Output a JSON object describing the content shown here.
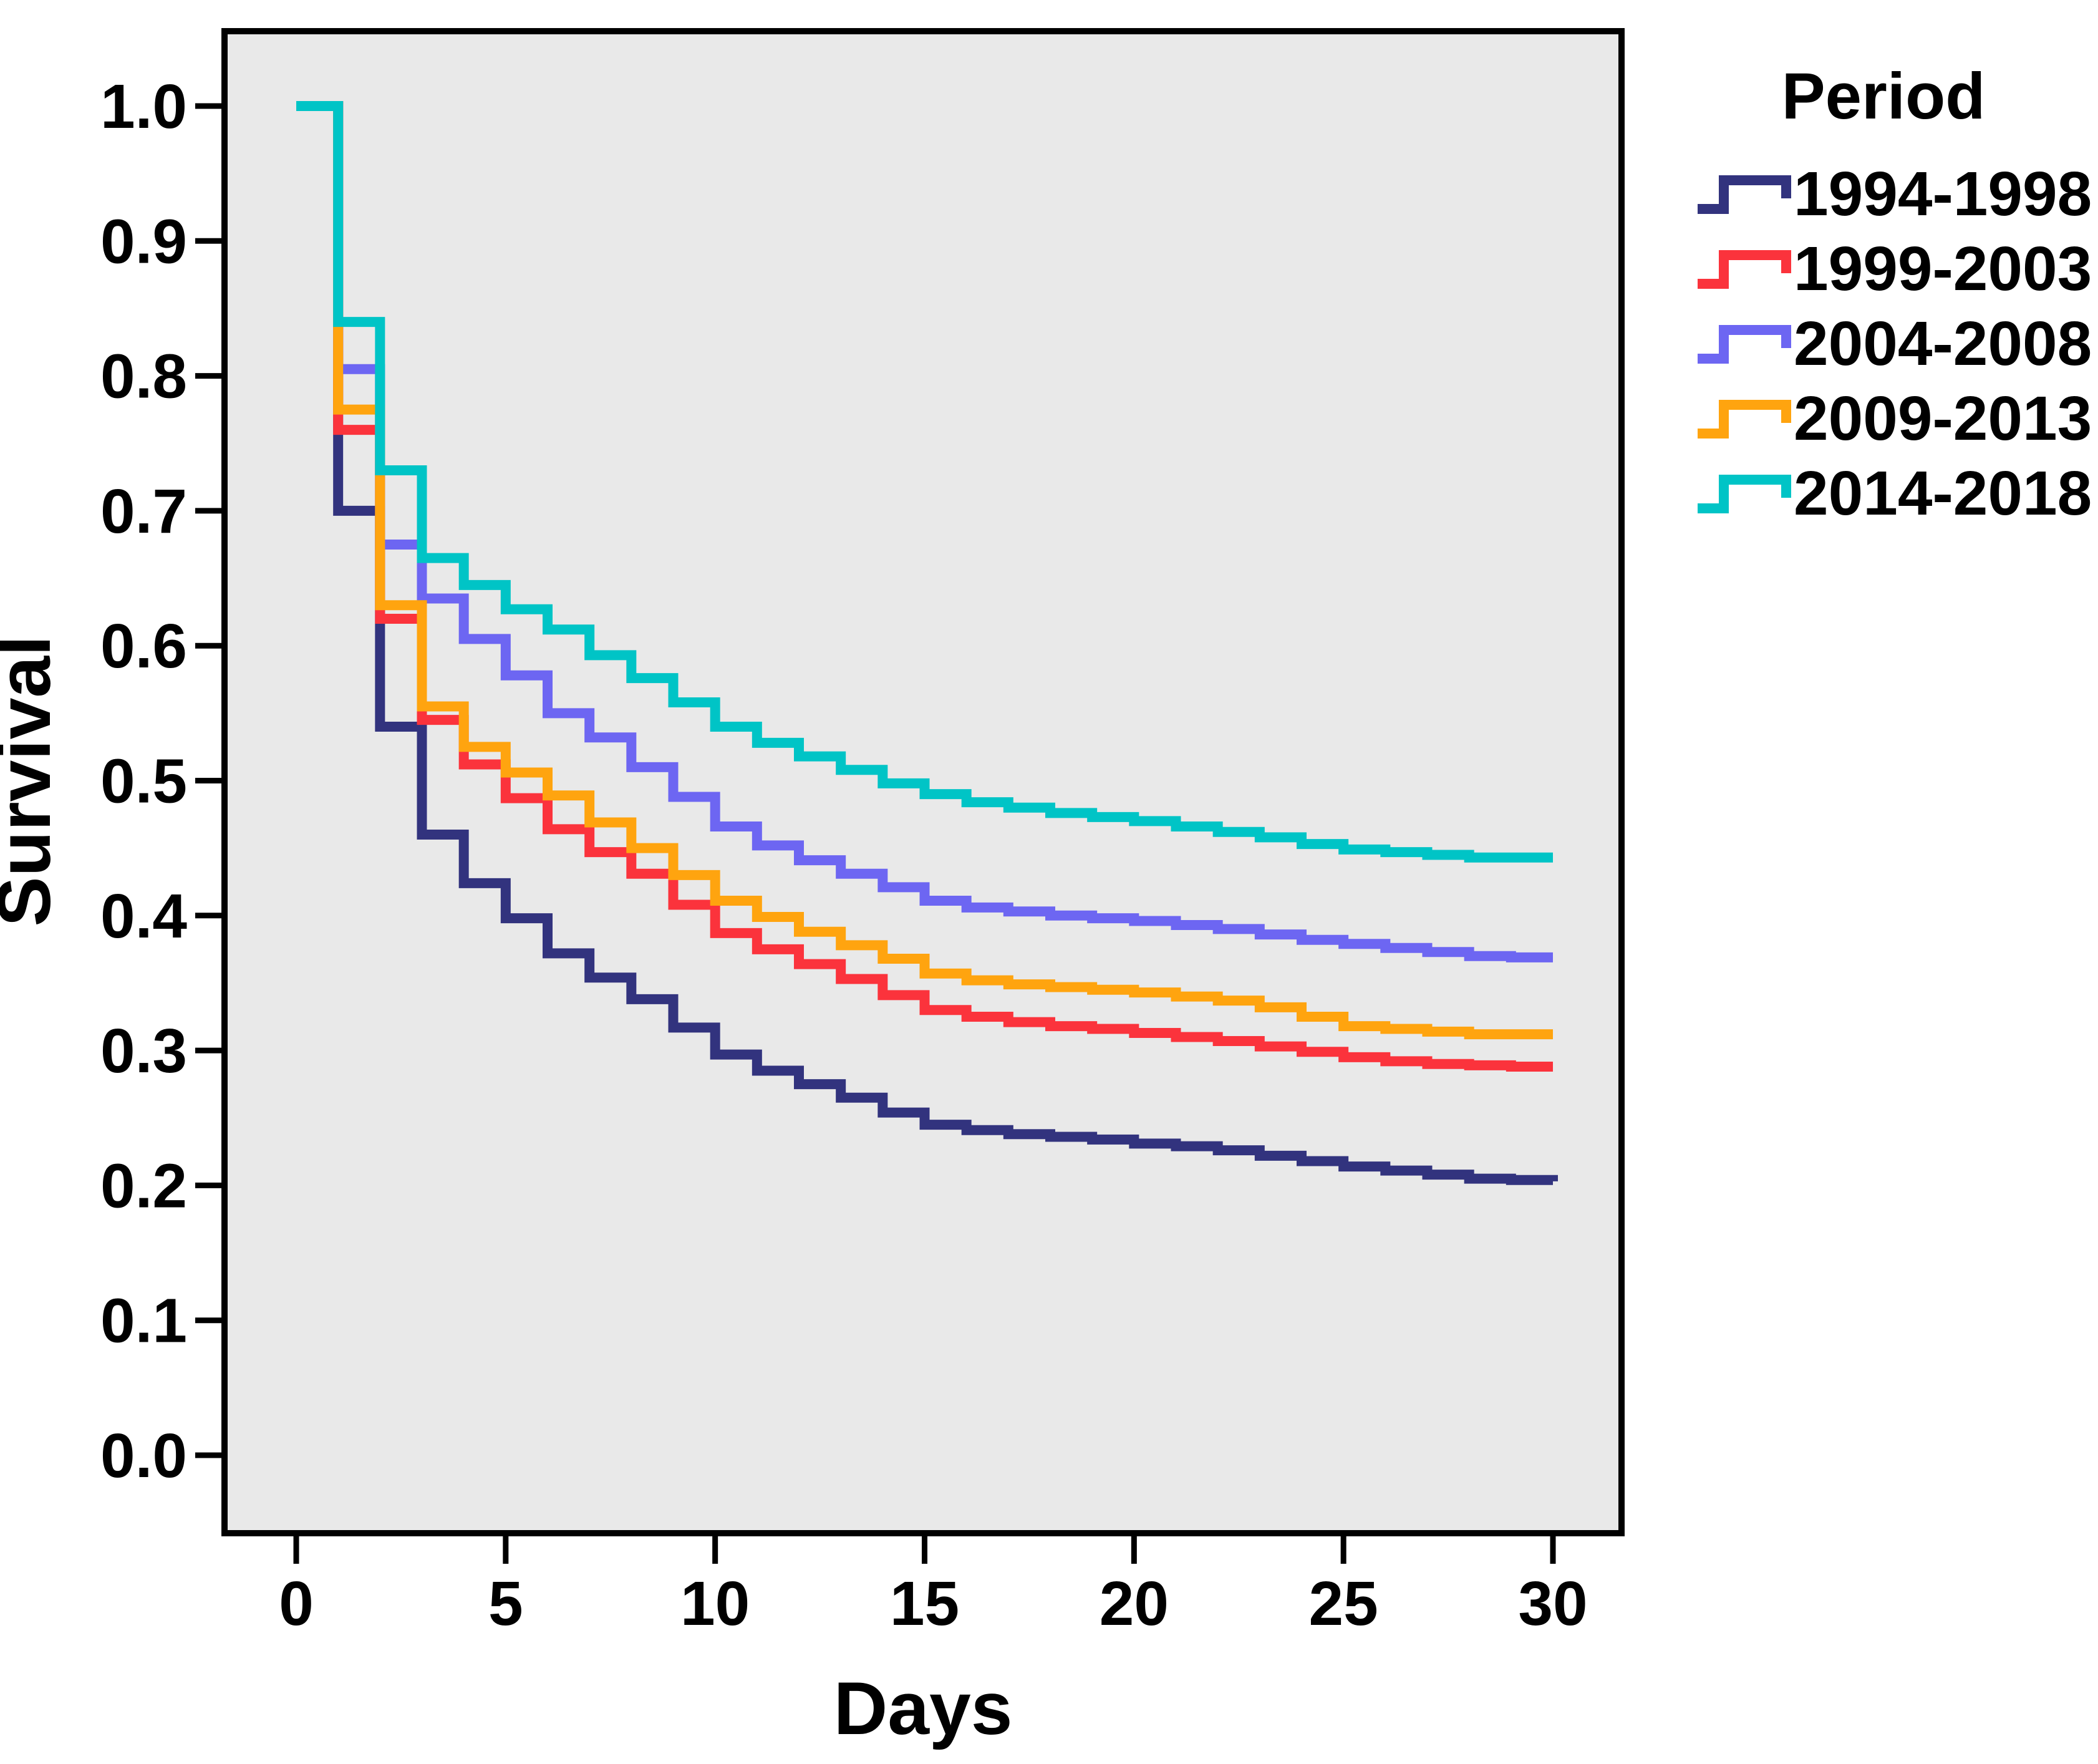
{
  "chart_data": {
    "type": "line",
    "subtype": "kaplan-meier-step-survival",
    "title": "",
    "xlabel": "Days",
    "ylabel": "Survival",
    "legend_title": "Period",
    "legend_position": "outside-top-right",
    "grid": false,
    "plot_background_color": "#E9E9E9",
    "axis_color": "#000000",
    "xlim": [
      0,
      30
    ],
    "ylim": [
      0.0,
      1.0
    ],
    "x_ticks": [
      0,
      5,
      10,
      15,
      20,
      25,
      30
    ],
    "y_ticks": [
      {
        "value": 1.0,
        "label": "1.0"
      },
      {
        "value": 0.9,
        "label": "0.9"
      },
      {
        "value": 0.8,
        "label": "0.8"
      },
      {
        "value": 0.7,
        "label": "0.7"
      },
      {
        "value": 0.6,
        "label": "0.6"
      },
      {
        "value": 0.5,
        "label": "0.5"
      },
      {
        "value": 0.4,
        "label": "0.4"
      },
      {
        "value": 0.3,
        "label": "0.3"
      },
      {
        "value": 0.2,
        "label": "0.2"
      },
      {
        "value": 0.1,
        "label": "0.1"
      },
      {
        "value": 0.0,
        "label": "0.0"
      }
    ],
    "start_point": {
      "day": 0,
      "survival": 1.0
    },
    "days": [
      1,
      2,
      3,
      4,
      5,
      6,
      7,
      8,
      9,
      10,
      11,
      12,
      13,
      14,
      15,
      16,
      17,
      18,
      19,
      20,
      21,
      22,
      23,
      24,
      25,
      26,
      27,
      28,
      29,
      30
    ],
    "series": [
      {
        "name": "1994-1998",
        "color": "#32337E",
        "values": [
          0.7,
          0.54,
          0.46,
          0.424,
          0.398,
          0.372,
          0.354,
          0.338,
          0.317,
          0.297,
          0.285,
          0.275,
          0.265,
          0.254,
          0.245,
          0.241,
          0.238,
          0.236,
          0.234,
          0.231,
          0.229,
          0.226,
          0.222,
          0.218,
          0.214,
          0.211,
          0.208,
          0.205,
          0.204,
          0.203
        ]
      },
      {
        "name": "1999-2003",
        "color": "#FB333C",
        "values": [
          0.76,
          0.62,
          0.545,
          0.512,
          0.487,
          0.464,
          0.447,
          0.431,
          0.408,
          0.387,
          0.375,
          0.364,
          0.353,
          0.341,
          0.33,
          0.325,
          0.321,
          0.318,
          0.316,
          0.313,
          0.31,
          0.307,
          0.303,
          0.299,
          0.295,
          0.292,
          0.29,
          0.289,
          0.288,
          0.288
        ]
      },
      {
        "name": "2004-2008",
        "color": "#6D66F2",
        "values": [
          0.805,
          0.675,
          0.635,
          0.605,
          0.578,
          0.55,
          0.532,
          0.51,
          0.488,
          0.466,
          0.452,
          0.441,
          0.431,
          0.421,
          0.411,
          0.406,
          0.403,
          0.4,
          0.398,
          0.396,
          0.393,
          0.39,
          0.386,
          0.382,
          0.379,
          0.376,
          0.373,
          0.37,
          0.369,
          0.369
        ]
      },
      {
        "name": "2009-2013",
        "color": "#FFA40F",
        "values": [
          0.775,
          0.63,
          0.555,
          0.525,
          0.506,
          0.489,
          0.469,
          0.45,
          0.43,
          0.411,
          0.399,
          0.388,
          0.378,
          0.368,
          0.357,
          0.352,
          0.349,
          0.347,
          0.345,
          0.343,
          0.34,
          0.337,
          0.332,
          0.325,
          0.318,
          0.316,
          0.314,
          0.312,
          0.312,
          0.312
        ]
      },
      {
        "name": "2014-2018",
        "color": "#00C4C6",
        "values": [
          0.84,
          0.73,
          0.665,
          0.645,
          0.627,
          0.612,
          0.593,
          0.576,
          0.558,
          0.54,
          0.528,
          0.518,
          0.508,
          0.498,
          0.49,
          0.484,
          0.48,
          0.476,
          0.473,
          0.47,
          0.466,
          0.462,
          0.458,
          0.453,
          0.449,
          0.447,
          0.445,
          0.443,
          0.443,
          0.443
        ]
      }
    ],
    "draw_order": [
      0,
      1,
      2,
      3,
      4
    ],
    "final_values": {
      "1994-1998": 0.203,
      "1999-2003": 0.288,
      "2004-2008": 0.369,
      "2009-2013": 0.312,
      "2014-2018": 0.443
    }
  }
}
